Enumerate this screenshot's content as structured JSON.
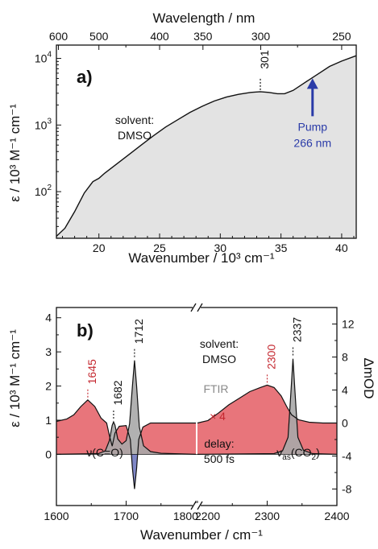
{
  "chart_data": [
    {
      "type": "area",
      "panel_label": "a)",
      "xlabel": "Wavenumber / 10³ cm⁻¹",
      "x2label": "Wavelength / nm",
      "ylabel": "ε / 10³ M⁻¹ cm⁻¹",
      "xlim": [
        16.5,
        41.2
      ],
      "ylim_log": [
        1.3,
        4.2
      ],
      "yscale": "log",
      "x_ticks": [
        {
          "v": 20,
          "label": "20"
        },
        {
          "v": 25,
          "label": "25"
        },
        {
          "v": 30,
          "label": "30"
        },
        {
          "v": 35,
          "label": "35"
        },
        {
          "v": 40,
          "label": "40"
        }
      ],
      "x2_ticks": [
        {
          "nm": 600,
          "label": "600"
        },
        {
          "nm": 500,
          "label": "500"
        },
        {
          "nm": 400,
          "label": "400"
        },
        {
          "nm": 350,
          "label": "350"
        },
        {
          "nm": 300,
          "label": "300"
        },
        {
          "nm": 250,
          "label": "250"
        }
      ],
      "y_ticks": [
        {
          "log": 2,
          "base": "10",
          "exp": "2"
        },
        {
          "log": 3,
          "base": "10",
          "exp": "3"
        },
        {
          "log": 4,
          "base": "10",
          "exp": "4"
        }
      ],
      "series": [
        {
          "x": [
            16.5,
            17.2,
            18.0,
            18.8,
            19.5,
            20.0,
            20.5,
            21.5,
            22.5,
            23.5,
            24.5,
            25.5,
            26.5,
            27.5,
            28.5,
            29.5,
            30.5,
            31.5,
            32.5,
            33.3,
            34.0,
            34.7,
            35.3,
            36.0,
            37.0,
            38.0,
            39.0,
            40.0,
            41.2
          ],
          "log_y": [
            1.33,
            1.45,
            1.7,
            1.98,
            2.15,
            2.2,
            2.28,
            2.42,
            2.56,
            2.7,
            2.84,
            2.97,
            3.08,
            3.19,
            3.28,
            3.36,
            3.42,
            3.46,
            3.49,
            3.5,
            3.49,
            3.47,
            3.47,
            3.52,
            3.64,
            3.76,
            3.88,
            3.96,
            4.04
          ]
        }
      ],
      "colors": {
        "fill": "#e3e3e3",
        "line": "#111111",
        "pump": "#2a3ba8"
      },
      "annotations": {
        "peak": "301",
        "peak_x": 33.3,
        "solvent_line1": "solvent:",
        "solvent_line2": "DMSO",
        "pump_line1": "Pump",
        "pump_line2": "266 nm",
        "pump_x": 37.6
      }
    },
    {
      "type": "area",
      "panel_label": "b)",
      "xlabel": "Wavenumber / cm⁻¹",
      "ylabel": "ε / 10³ M⁻¹ cm⁻¹",
      "y2label": "ΔmOD",
      "ylim": [
        -1.5,
        4.3
      ],
      "y2lim": [
        -10,
        14
      ],
      "axis_break": true,
      "x_segments": [
        {
          "xlim": [
            1600,
            1800
          ]
        },
        {
          "xlim": [
            2200,
            2400
          ]
        }
      ],
      "x_tick_labels": [
        {
          "seg": 0,
          "v": 1600,
          "label": "1600"
        },
        {
          "seg": 0,
          "v": 1700,
          "label": "1700"
        },
        {
          "seg": 0,
          "v": 1800,
          "label": "1800"
        },
        {
          "seg": 1,
          "v": 2200,
          "label": "2200"
        },
        {
          "seg": 1,
          "v": 2300,
          "label": "2300"
        },
        {
          "seg": 1,
          "v": 2400,
          "label": "2400"
        }
      ],
      "y_ticks": [
        "0",
        "1",
        "2",
        "3",
        "4"
      ],
      "y2_ticks": [
        "-8",
        "-4",
        "0",
        "4",
        "8",
        "12"
      ],
      "series": [
        {
          "name": "FTIR",
          "segment1": {
            "x": [
              1600,
              1660,
              1670,
              1676,
              1680,
              1682,
              1684,
              1688,
              1694,
              1700,
              1705,
              1709,
              1712,
              1715,
              1719,
              1725,
              1735,
              1750,
              1800
            ],
            "y": [
              0.0,
              0.02,
              0.1,
              0.4,
              0.85,
              0.95,
              0.85,
              0.45,
              0.3,
              0.4,
              0.9,
              2.0,
              2.75,
              2.0,
              0.8,
              0.25,
              0.08,
              0.03,
              0.0
            ]
          },
          "segment2": {
            "x": [
              2200,
              2310,
              2322,
              2330,
              2334,
              2337,
              2340,
              2344,
              2352,
              2365,
              2400
            ],
            "y": [
              0.0,
              0.02,
              0.1,
              0.5,
              1.8,
              2.8,
              1.8,
              0.5,
              0.12,
              0.02,
              0.0
            ]
          }
        },
        {
          "name": "",
          "segment1": {
            "x": [
              1600,
              1615,
              1625,
              1635,
              1645,
              1655,
              1664,
              1672,
              1676,
              1680,
              1684,
              1690,
              1700,
              1706,
              1709,
              1712,
              1715,
              1718,
              1724,
              1735,
              1750,
              1800
            ],
            "y": [
              0.2,
              0.5,
              1.0,
              2.0,
              2.8,
              2.0,
              0.6,
              0.0,
              -1.5,
              -2.8,
              -1.2,
              -0.4,
              -0.3,
              -2.0,
              -5.5,
              -8.0,
              -5.5,
              -2.0,
              -0.5,
              0.0,
              0.0,
              0.0
            ]
          },
          "segment2": {
            "x": [
              2200,
              2215,
              2230,
              2245,
              2260,
              2275,
              2290,
              2300,
              2310,
              2320,
              2328,
              2335,
              2345,
              2360,
              2380,
              2400
            ],
            "y": [
              0.0,
              0.3,
              1.2,
              2.2,
              3.0,
              3.8,
              4.3,
              4.6,
              4.3,
              3.3,
              2.0,
              1.0,
              0.4,
              0.1,
              0.0,
              0.0
            ]
          }
        }
      ],
      "colors": {
        "ftir_fill": "#a8a8a8",
        "pos_fill": "#e8757b",
        "neg_fill": "#7f87c6",
        "line": "#111111",
        "red_text": "#c4262e",
        "grey_text": "#8a8a8a"
      },
      "annotations": {
        "peak_1645": "1645",
        "peak_1645_x": 1645,
        "peak_1682": "1682",
        "peak_1682_x": 1682,
        "peak_1712": "1712",
        "peak_1712_x": 1712,
        "peak_2300": "2300",
        "peak_2300_x": 2300,
        "peak_2337": "2337",
        "peak_2337_x": 2337,
        "solvent_line1": "solvent:",
        "solvent_line2": "DMSO",
        "ftir_label": "FTIR",
        "scale_label": "× 4",
        "delay_line1": "delay:",
        "delay_line2": "500 fs",
        "nu_co": "ν(C=O)",
        "nu_co2_main": "ν",
        "nu_co2_sub": "as",
        "nu_co2_rest": "(CO",
        "nu_co2_sub2": "2",
        "nu_co2_end": ")"
      }
    }
  ]
}
